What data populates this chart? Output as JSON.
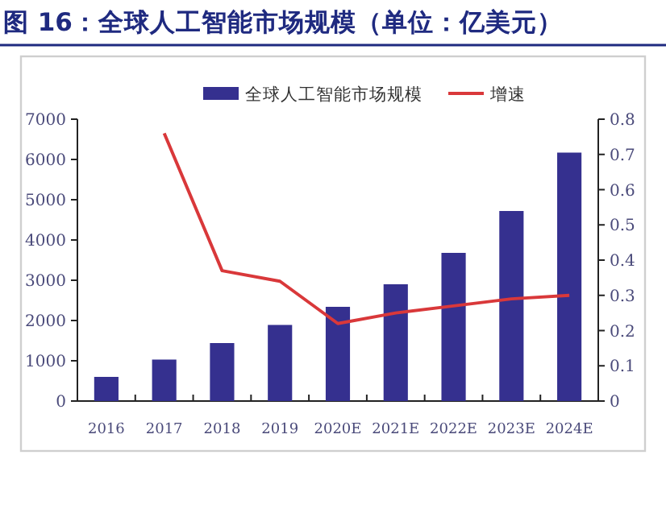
{
  "chart_data": {
    "type": "bar",
    "title": "图 16：全球人工智能市场规模（单位：亿美元）",
    "categories": [
      "2016",
      "2017",
      "2018",
      "2019",
      "2020E",
      "2021E",
      "2022E",
      "2023E",
      "2024E"
    ],
    "series": [
      {
        "name": "全球人工智能市场规模",
        "color": "#35308f",
        "values": [
          600,
          1030,
          1440,
          1890,
          2340,
          2900,
          3680,
          4720,
          6170
        ]
      },
      {
        "name": "增速",
        "type": "line",
        "axis": "y2",
        "color": "#d9383a",
        "values": [
          null,
          0.76,
          0.37,
          0.34,
          0.22,
          0.25,
          0.27,
          0.29,
          0.3
        ]
      }
    ],
    "ylim": [
      0,
      7000
    ],
    "yticks": [
      0,
      1000,
      2000,
      3000,
      4000,
      5000,
      6000,
      7000
    ],
    "y2lim": [
      0,
      0.8
    ],
    "y2ticks": [
      0,
      0.1,
      0.2,
      0.3,
      0.4,
      0.5,
      0.6,
      0.7,
      0.8
    ],
    "legend": "top"
  }
}
